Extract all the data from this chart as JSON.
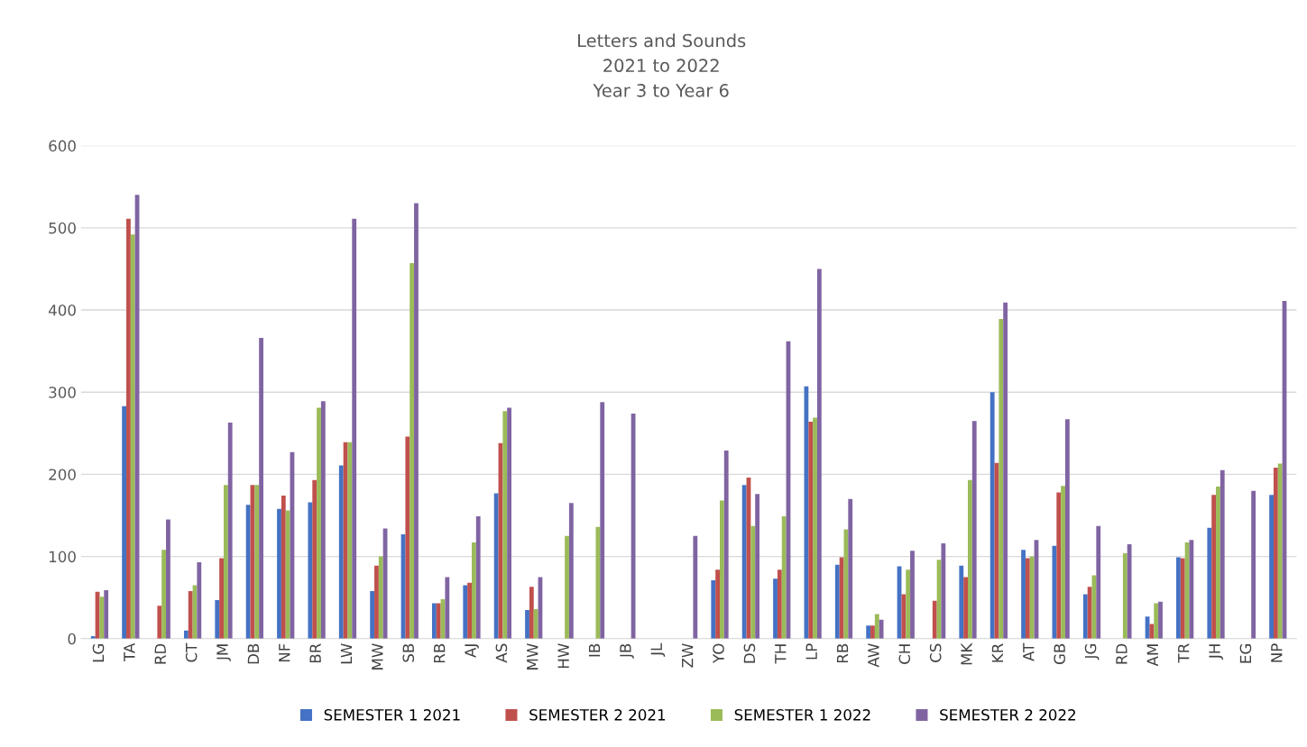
{
  "chart_data": {
    "type": "bar",
    "title": "Letters and Sounds\n2021 to 2022\nYear 3 to Year 6",
    "categories": [
      "LG",
      "TA",
      "RD",
      "CT",
      "JM",
      "DB",
      "NF",
      "BR",
      "LW",
      "MW",
      "SB",
      "RB",
      "AJ",
      "AS",
      "MW",
      "HW",
      "IB",
      "JB",
      "JL",
      "ZW",
      "YO",
      "DS",
      "TH",
      "LP",
      "RB",
      "AW",
      "CH",
      "CS",
      "MK",
      "KR",
      "AT",
      "GB",
      "JG",
      "RD",
      "AM",
      "TR",
      "JH",
      "EG",
      "NP"
    ],
    "series": [
      {
        "name": "SEMESTER 1 2021",
        "color": "#4472c4",
        "values": [
          3,
          283,
          null,
          10,
          47,
          163,
          158,
          166,
          211,
          58,
          127,
          43,
          65,
          177,
          35,
          null,
          null,
          null,
          null,
          null,
          71,
          187,
          73,
          307,
          90,
          16,
          88,
          null,
          89,
          300,
          108,
          113,
          54,
          null,
          27,
          99,
          135,
          null,
          175
        ]
      },
      {
        "name": "SEMESTER 2 2021",
        "color": "#c0504d",
        "values": [
          57,
          511,
          40,
          58,
          98,
          187,
          174,
          193,
          239,
          89,
          246,
          43,
          68,
          238,
          63,
          null,
          null,
          null,
          null,
          null,
          84,
          196,
          84,
          264,
          99,
          16,
          54,
          46,
          75,
          214,
          98,
          178,
          63,
          null,
          18,
          98,
          175,
          null,
          208
        ]
      },
      {
        "name": "SEMESTER 1 2022",
        "color": "#9bbb59",
        "values": [
          51,
          492,
          108,
          65,
          187,
          187,
          156,
          281,
          239,
          100,
          457,
          48,
          117,
          277,
          36,
          125,
          136,
          null,
          null,
          null,
          168,
          137,
          149,
          269,
          133,
          30,
          84,
          96,
          193,
          389,
          100,
          186,
          77,
          104,
          43,
          117,
          185,
          null,
          213
        ]
      },
      {
        "name": "SEMESTER 2 2022",
        "color": "#8064a2",
        "values": [
          59,
          540,
          145,
          93,
          263,
          366,
          227,
          289,
          511,
          134,
          530,
          75,
          149,
          281,
          75,
          165,
          288,
          274,
          null,
          125,
          229,
          176,
          362,
          450,
          170,
          23,
          107,
          116,
          265,
          409,
          120,
          267,
          137,
          115,
          45,
          120,
          205,
          180,
          411
        ]
      }
    ],
    "ylim": [
      0,
      600
    ],
    "yticks": [
      0,
      100,
      200,
      300,
      400,
      500,
      600
    ],
    "grid": "y",
    "legend": "bottom"
  }
}
